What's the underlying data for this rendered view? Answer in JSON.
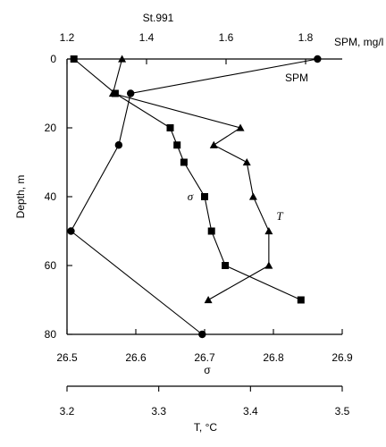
{
  "chart_data": {
    "type": "line",
    "title": "St.991",
    "ylabel": "Depth, m",
    "yreversed": true,
    "ylim": [
      0,
      80
    ],
    "yticks": [
      0,
      20,
      40,
      60,
      80
    ],
    "axes": {
      "spm": {
        "label": "SPM, mg/l",
        "position": "top",
        "range": [
          1.2,
          1.8
        ],
        "ticks": [
          "1.2",
          "1.4",
          "1.6",
          "1.8"
        ]
      },
      "sigma": {
        "label": "σ",
        "position": "bottom",
        "range": [
          26.5,
          26.9
        ],
        "ticks": [
          "26.5",
          "26.6",
          "26.7",
          "26.8",
          "26.9"
        ]
      },
      "temp": {
        "label": "T, °C",
        "position": "bottom-offset",
        "range": [
          3.2,
          3.5
        ],
        "ticks": [
          "3.2",
          "3.3",
          "3.4",
          "3.5"
        ]
      }
    },
    "series": [
      {
        "name": "SPM",
        "marker": "circle",
        "axis": "spm",
        "points": [
          {
            "x": 1.83,
            "y": 0
          },
          {
            "x": 1.36,
            "y": 10
          },
          {
            "x": 1.33,
            "y": 25
          },
          {
            "x": 1.21,
            "y": 50
          },
          {
            "x": 1.54,
            "y": 80
          }
        ]
      },
      {
        "name": "σ",
        "marker": "square",
        "axis": "sigma",
        "points": [
          {
            "x": 26.51,
            "y": 0
          },
          {
            "x": 26.57,
            "y": 10
          },
          {
            "x": 26.65,
            "y": 20
          },
          {
            "x": 26.66,
            "y": 25
          },
          {
            "x": 26.67,
            "y": 30
          },
          {
            "x": 26.7,
            "y": 40
          },
          {
            "x": 26.71,
            "y": 50
          },
          {
            "x": 26.73,
            "y": 60
          },
          {
            "x": 26.84,
            "y": 70
          }
        ]
      },
      {
        "name": "T",
        "marker": "triangle",
        "axis": "temp",
        "points": [
          {
            "x": 3.26,
            "y": 0
          },
          {
            "x": 3.25,
            "y": 10
          },
          {
            "x": 3.389,
            "y": 20
          },
          {
            "x": 3.36,
            "y": 25
          },
          {
            "x": 3.396,
            "y": 30
          },
          {
            "x": 3.403,
            "y": 40
          },
          {
            "x": 3.42,
            "y": 50
          },
          {
            "x": 3.42,
            "y": 60
          },
          {
            "x": 3.354,
            "y": 70
          }
        ]
      }
    ],
    "annotations": {
      "spm": "SPM",
      "sigma": "σ",
      "temp": "T"
    }
  }
}
